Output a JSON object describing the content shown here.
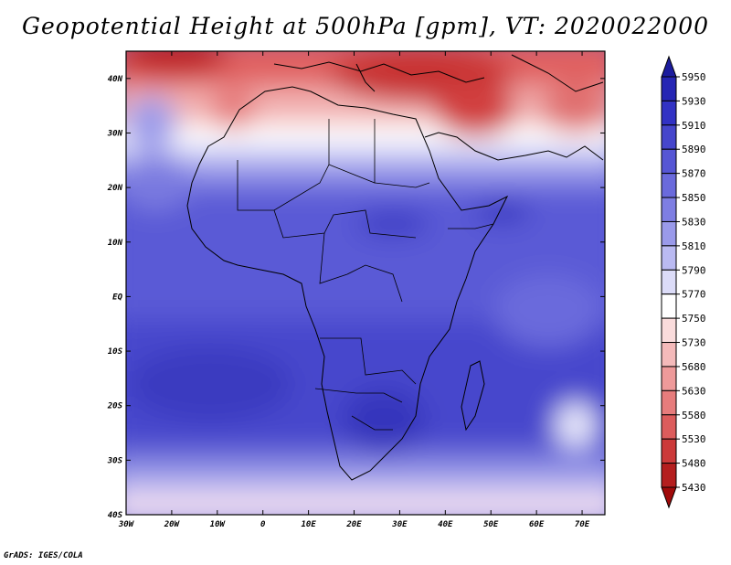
{
  "title": "Geopotential Height at 500hPa [gpm], VT: 2020022000",
  "credit": "GrADS: IGES/COLA",
  "map": {
    "x_ticks": [
      "30W",
      "20W",
      "10W",
      "0",
      "10E",
      "20E",
      "30E",
      "40E",
      "50E",
      "60E",
      "70E"
    ],
    "y_ticks": [
      "40N",
      "30N",
      "20N",
      "10N",
      "EQ",
      "10S",
      "20S",
      "30S",
      "40S"
    ],
    "lon_range": [
      -30,
      75
    ],
    "lat_range": [
      -40,
      45
    ]
  },
  "colorbar": {
    "levels": [
      "5950",
      "5930",
      "5910",
      "5890",
      "5870",
      "5850",
      "5830",
      "5810",
      "5790",
      "5770",
      "5750",
      "5730",
      "5680",
      "5630",
      "5580",
      "5530",
      "5480",
      "5430"
    ],
    "colors": [
      "#1c1c9e",
      "#2626b4",
      "#3232c4",
      "#4646cc",
      "#5656d4",
      "#6a6adc",
      "#7e7ee2",
      "#9a9aea",
      "#babaf2",
      "#dcdcf8",
      "#ffffff",
      "#fadcdc",
      "#f4baba",
      "#ee9a9a",
      "#e67c7c",
      "#dc5c5c",
      "#cc3a3a",
      "#b41e1e",
      "#a00a0a"
    ]
  },
  "colors": {
    "frame": "#000000",
    "background": "#ffffff"
  }
}
